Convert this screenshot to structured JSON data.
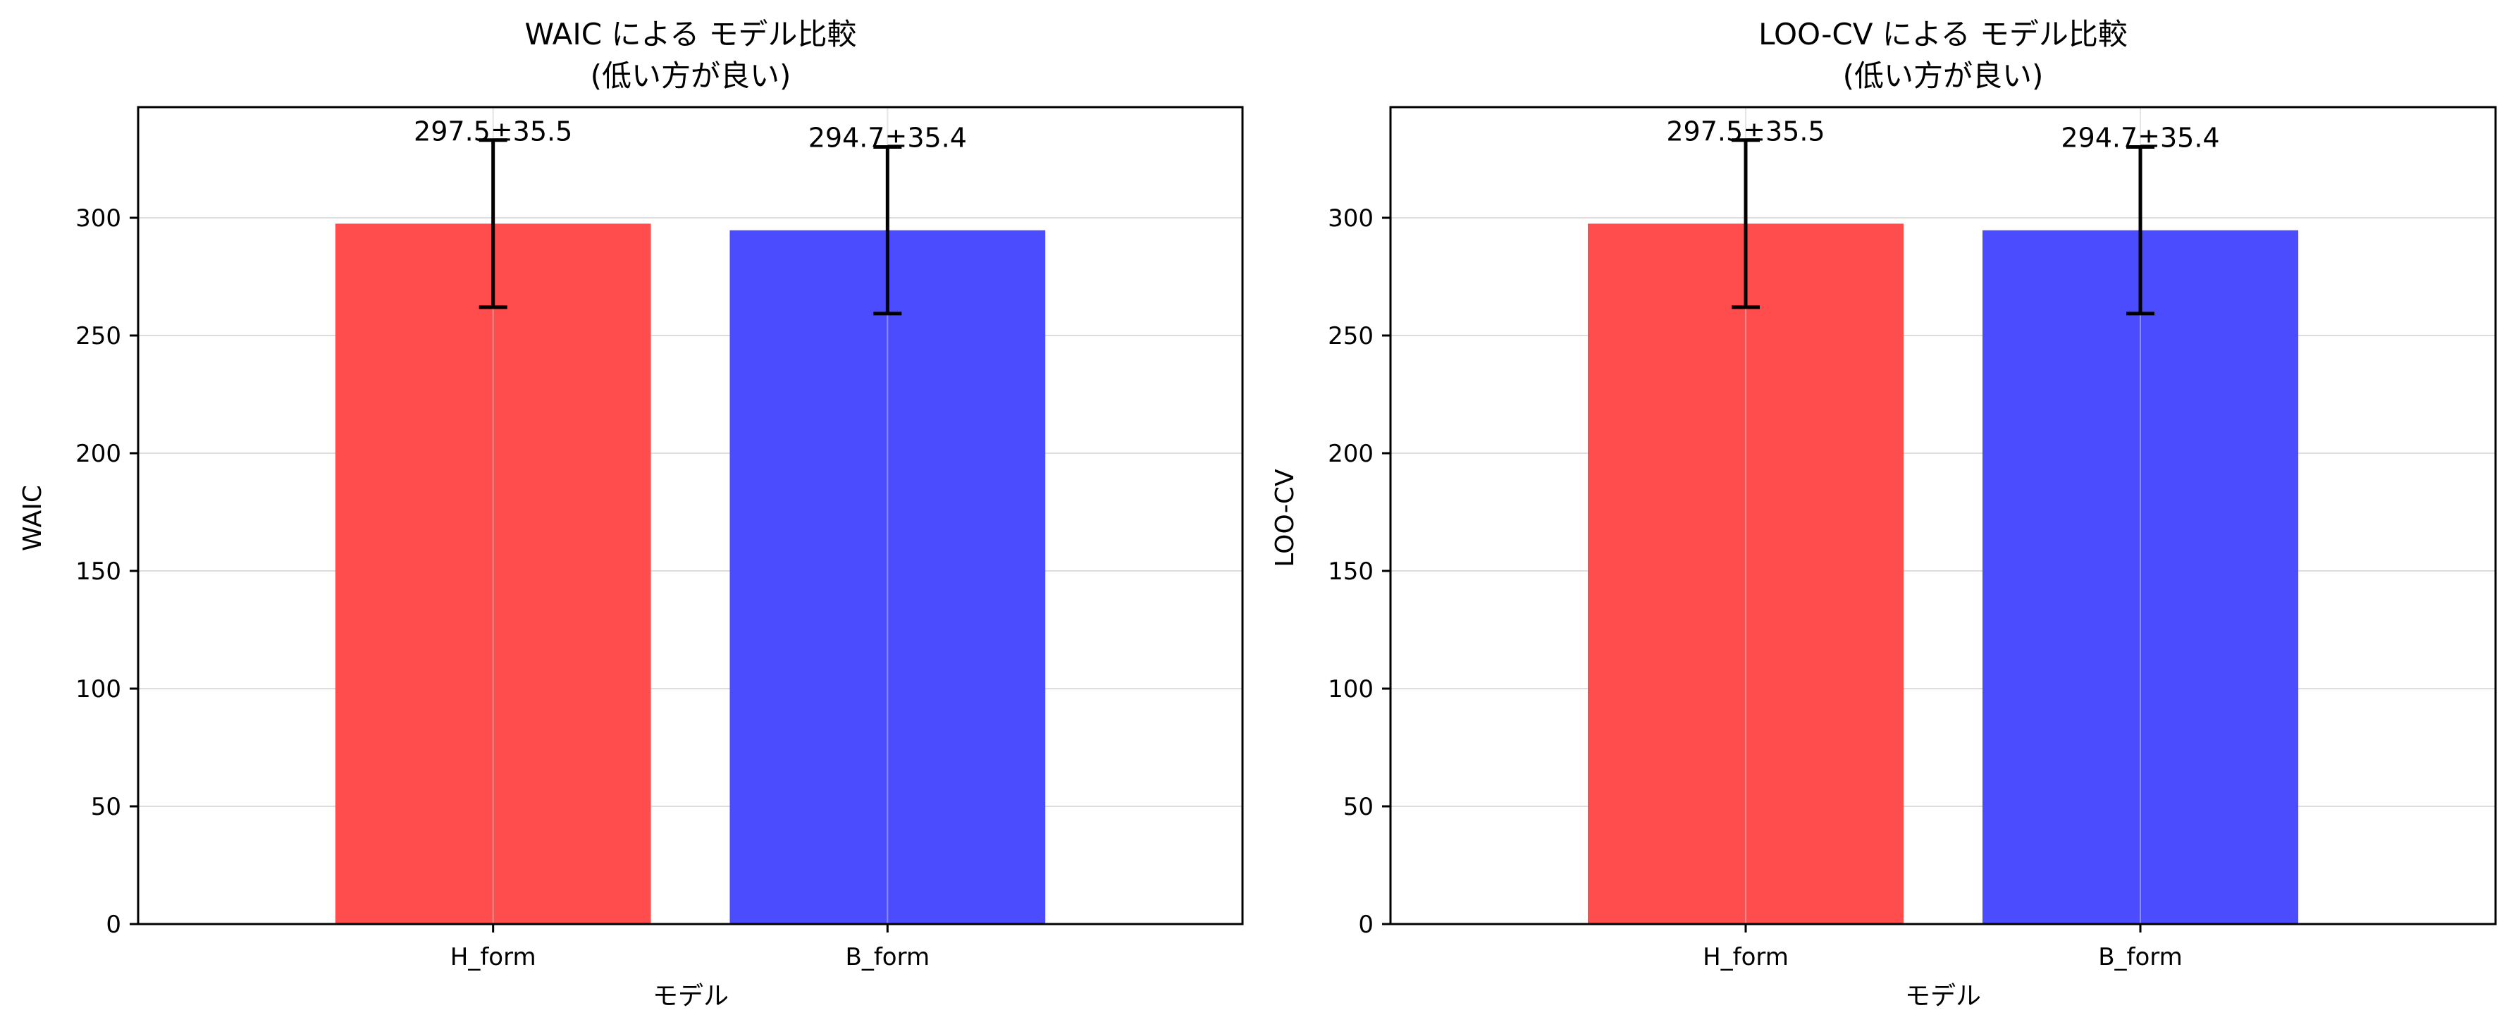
{
  "colors": {
    "H_form": "#ff4c4c",
    "B_form": "#4c4cff",
    "grid": "#dddddd",
    "errorbar": "#000000"
  },
  "chart_data": [
    {
      "type": "bar",
      "title": "WAIC による モデル比較",
      "subtitle": "(低い方が良い)",
      "xlabel": "モデル",
      "ylabel": "WAIC",
      "categories": [
        "H_form",
        "B_form"
      ],
      "values": [
        297.5,
        294.7
      ],
      "errors": [
        35.5,
        35.4
      ],
      "value_labels": [
        "297.5±35.5",
        "294.7±35.4"
      ],
      "ylim": [
        0,
        347
      ],
      "yticks": [
        0,
        50,
        100,
        150,
        200,
        250,
        300
      ],
      "grid": true
    },
    {
      "type": "bar",
      "title": "LOO-CV による モデル比較",
      "subtitle": "(低い方が良い)",
      "xlabel": "モデル",
      "ylabel": "LOO-CV",
      "categories": [
        "H_form",
        "B_form"
      ],
      "values": [
        297.5,
        294.7
      ],
      "errors": [
        35.5,
        35.4
      ],
      "value_labels": [
        "297.5±35.5",
        "294.7±35.4"
      ],
      "ylim": [
        0,
        347
      ],
      "yticks": [
        0,
        50,
        100,
        150,
        200,
        250,
        300
      ],
      "grid": true
    }
  ]
}
